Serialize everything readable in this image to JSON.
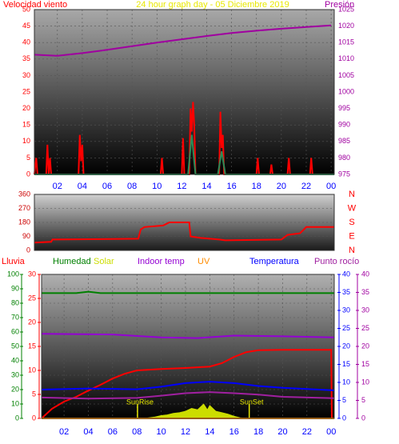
{
  "chart_data": [
    {
      "type": "line",
      "title": "24 hour graph day - 05 Diciembre 2019",
      "ylabel": "Velocidad viento",
      "y2label": "Presión",
      "title_color": "#e8e800",
      "ytick_color": "#ff0000",
      "y2tick_color": "#a000a0",
      "xtick_color": "#0000ff",
      "xlim": [
        0.15,
        24.25
      ],
      "xticks": [
        {
          "value": 2,
          "label": "02"
        },
        {
          "value": 4,
          "label": "04"
        },
        {
          "value": 6,
          "label": "06"
        },
        {
          "value": 8,
          "label": "08"
        },
        10,
        12,
        14,
        16,
        18,
        20,
        22,
        {
          "value": 24,
          "label": "00"
        }
      ],
      "ylim": [
        0,
        50
      ],
      "yticks": [
        0,
        5,
        10,
        15,
        20,
        25,
        30,
        35,
        40,
        45,
        50
      ],
      "y2lim": [
        975,
        1025
      ],
      "y2ticks": [
        975,
        980,
        985,
        990,
        995,
        1000,
        1005,
        1010,
        1015,
        1020,
        1025
      ],
      "grid": true,
      "series": [
        {
          "color": "#ff0000",
          "x": [
            0.15,
            0.3,
            0.4,
            0.5,
            1.1,
            1.2,
            1.3,
            1.4,
            1.5,
            1.6,
            3.7,
            3.8,
            3.9,
            4.0,
            4.1,
            10.3,
            10.4,
            10.5,
            12.0,
            12.1,
            12.2,
            12.6,
            12.7,
            12.8,
            12.9,
            13.0,
            13.1,
            15.0,
            15.1,
            15.2,
            15.3,
            15.4,
            18.0,
            18.1,
            18.2,
            19.1,
            19.2,
            19.3,
            20.5,
            20.6,
            20.7,
            22.3,
            22.4,
            22.5,
            24.25
          ],
          "values": [
            0,
            5,
            0,
            0,
            0,
            9,
            0,
            5,
            0,
            0,
            0,
            12,
            4,
            9,
            0,
            0,
            5,
            0,
            0,
            11,
            0,
            0,
            20,
            13,
            22,
            15,
            0,
            0,
            19,
            8,
            12,
            0,
            0,
            5,
            0,
            0,
            3,
            0,
            0,
            5,
            0,
            0,
            5,
            0,
            0
          ]
        },
        {
          "color": "#2e8b57",
          "x": [
            0.15,
            12.5,
            12.8,
            13.1,
            14.9,
            15.2,
            15.5,
            24.25
          ],
          "values": [
            0,
            0,
            12,
            0,
            0,
            7,
            0,
            0
          ]
        },
        {
          "color": "#a000a0",
          "axis": "y2",
          "x": [
            0.15,
            2,
            4,
            6,
            8,
            10,
            12,
            14,
            16,
            18,
            20,
            22,
            24
          ],
          "values": [
            1011.3,
            1011.0,
            1011.8,
            1012.8,
            1013.9,
            1015.0,
            1016.0,
            1017.0,
            1017.9,
            1018.6,
            1019.2,
            1019.7,
            1020.2
          ]
        }
      ]
    },
    {
      "type": "line",
      "ytick_color": "#cc0000",
      "y2tick_color": "#ff0000",
      "xlim": [
        0.15,
        24.25
      ],
      "ylim": [
        0,
        360
      ],
      "yticks": [
        0,
        90,
        180,
        270,
        360
      ],
      "y2lim": [
        0,
        360
      ],
      "y2ticks": [
        {
          "value": 0,
          "label": "N"
        },
        {
          "value": 90,
          "label": "E"
        },
        {
          "value": 180,
          "label": "S"
        },
        {
          "value": 270,
          "label": "W"
        },
        {
          "value": 360,
          "label": "N"
        }
      ],
      "grid": true,
      "series": [
        {
          "color": "#ff0000",
          "x": [
            0.15,
            1.5,
            1.6,
            8.5,
            8.7,
            9.0,
            10.5,
            11.0,
            12.6,
            12.7,
            13.5,
            15.0,
            15.5,
            20.0,
            20.5,
            21.5,
            22.0,
            24.25
          ],
          "values": [
            50,
            55,
            70,
            75,
            135,
            150,
            160,
            180,
            180,
            90,
            80,
            70,
            65,
            70,
            100,
            110,
            150,
            150
          ]
        }
      ]
    },
    {
      "type": "line",
      "xtick_color": "#0000ff",
      "xlim": [
        0.15,
        24.25
      ],
      "xticks": [
        {
          "value": 2,
          "label": "02"
        },
        {
          "value": 4,
          "label": "04"
        },
        {
          "value": 6,
          "label": "06"
        },
        {
          "value": 8,
          "label": "08"
        },
        10,
        12,
        14,
        16,
        18,
        20,
        22,
        {
          "value": 24,
          "label": "00"
        }
      ],
      "grid": true,
      "axes": [
        {
          "id": "hum",
          "color": "#008000",
          "lim": [
            0,
            100
          ],
          "ticks": [
            0,
            10,
            20,
            30,
            40,
            50,
            60,
            70,
            80,
            90,
            100
          ]
        },
        {
          "id": "rain",
          "color": "#ff0000",
          "lim": [
            0,
            30
          ],
          "ticks": [
            0,
            5,
            10,
            15,
            20,
            25,
            30
          ]
        },
        {
          "id": "temp",
          "color": "#0000ff",
          "lim": [
            0,
            40
          ],
          "ticks": [
            0,
            5,
            10,
            15,
            20,
            25,
            30,
            35,
            40
          ]
        },
        {
          "id": "dew",
          "color": "#a000a0",
          "lim": [
            0,
            40
          ],
          "ticks": [
            0,
            5,
            10,
            15,
            20,
            25,
            30,
            35,
            40
          ]
        }
      ],
      "annotations": [
        {
          "text": "SunRise",
          "x": 8.05
        },
        {
          "text": "SunSet",
          "x": 17.25
        }
      ],
      "series": [
        {
          "name": "Lluvia",
          "color": "#ff0000",
          "axis": "rain",
          "x": [
            0.15,
            1,
            2,
            3,
            4,
            5,
            6,
            7,
            8,
            10,
            12,
            14,
            15,
            16,
            17,
            18,
            20,
            22,
            24,
            24.05
          ],
          "values": [
            0,
            2,
            3.5,
            4.5,
            5.8,
            7,
            8.3,
            9.3,
            10,
            10.3,
            10.5,
            10.8,
            11.5,
            12.8,
            13.8,
            14.2,
            14.3,
            14.3,
            14.3,
            0
          ]
        },
        {
          "name": "Humedad",
          "color": "#008000",
          "axis": "hum",
          "x": [
            0.15,
            3,
            4,
            5,
            24.25
          ],
          "values": [
            87,
            87,
            88,
            87,
            87
          ]
        },
        {
          "name": "Solar",
          "color": "#ccdd00",
          "axis": "hum",
          "fill": true,
          "x": [
            8.5,
            9,
            9.5,
            10,
            10.5,
            11,
            11.5,
            12,
            12.5,
            13,
            13.5,
            13.8,
            14,
            14.5,
            15,
            15.5,
            16,
            16.5,
            17
          ],
          "values": [
            0,
            0.5,
            1,
            2,
            2.5,
            3.5,
            4,
            5,
            7,
            6,
            10,
            6,
            9,
            5,
            4,
            3,
            1.5,
            0.5,
            0
          ]
        },
        {
          "name": "Indoor temp",
          "color": "#9400d3",
          "axis": "temp",
          "x": [
            0.15,
            6,
            10,
            13,
            16,
            20,
            24.25
          ],
          "values": [
            23.5,
            23.3,
            22.5,
            22.3,
            23,
            22.8,
            22.5
          ]
        },
        {
          "name": "UV",
          "color": "#ff8c00",
          "axis": "temp",
          "x": [
            0.15,
            24.25
          ],
          "values": [
            0,
            0
          ]
        },
        {
          "name": "Temperatura",
          "color": "#0000ff",
          "axis": "temp",
          "x": [
            0.15,
            4,
            8,
            10,
            12,
            14,
            16,
            18,
            20,
            24.25
          ],
          "values": [
            8,
            8.3,
            8.1,
            8.8,
            9.8,
            10.2,
            9.8,
            9,
            8.5,
            7.8
          ]
        },
        {
          "name": "Punto rocío",
          "color": "#a020a0",
          "axis": "dew",
          "x": [
            0.15,
            4,
            8,
            10,
            12,
            14,
            16,
            18,
            20,
            24.25
          ],
          "values": [
            5.8,
            5.5,
            5.7,
            6.3,
            7,
            7.3,
            7,
            6.6,
            6,
            5.6
          ]
        }
      ]
    }
  ]
}
